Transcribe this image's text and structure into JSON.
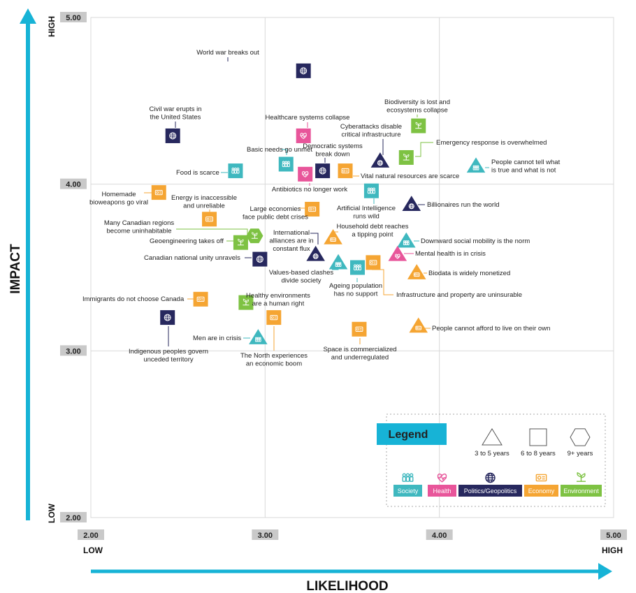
{
  "chart_data": {
    "type": "scatter",
    "xlabel": "LIKELIHOOD",
    "ylabel": "IMPACT",
    "xlim": [
      2.0,
      5.0
    ],
    "ylim": [
      2.0,
      5.0
    ],
    "x_ticks": [
      "2.00",
      "3.00",
      "4.00",
      "5.00"
    ],
    "y_ticks": [
      "2.00",
      "3.00",
      "4.00",
      "5.00"
    ],
    "x_end_labels": {
      "low": "LOW",
      "high": "HIGH"
    },
    "y_end_labels": {
      "low": "LOW",
      "high": "HIGH"
    },
    "grid": true,
    "categories": {
      "society": {
        "label": "Society",
        "color": "#3fb8bf"
      },
      "health": {
        "label": "Health",
        "color": "#e8559a"
      },
      "politics": {
        "label": "Politics/Geopolitics",
        "color": "#27285e"
      },
      "economy": {
        "label": "Economy",
        "color": "#f5a533"
      },
      "environment": {
        "label": "Environment",
        "color": "#7ec243"
      }
    },
    "points": [
      {
        "label": "World war breaks out",
        "x": 3.22,
        "y": 4.68,
        "category": "politics",
        "shape": "square"
      },
      {
        "label": "Civil war erupts in the United States",
        "x": 2.47,
        "y": 4.29,
        "category": "politics",
        "shape": "square"
      },
      {
        "label": "Healthcare systems collapse",
        "x": 3.22,
        "y": 4.29,
        "category": "health",
        "shape": "square"
      },
      {
        "label": "Biodiversity is lost and ecosystems collapse",
        "x": 3.88,
        "y": 4.35,
        "category": "environment",
        "shape": "square"
      },
      {
        "label": "Cyberattacks disable critical infrastructure",
        "x": 3.66,
        "y": 4.14,
        "category": "politics",
        "shape": "triangle"
      },
      {
        "label": "Emergency response is overwhelmed",
        "x": 3.81,
        "y": 4.16,
        "category": "environment",
        "shape": "square"
      },
      {
        "label": "People cannot tell what is true and what is not",
        "x": 4.21,
        "y": 4.11,
        "category": "society",
        "shape": "triangle"
      },
      {
        "label": "Basic needs go unmet",
        "x": 3.12,
        "y": 4.12,
        "category": "society",
        "shape": "square"
      },
      {
        "label": "Democratic systems break down",
        "x": 3.33,
        "y": 4.08,
        "category": "politics",
        "shape": "square"
      },
      {
        "label": "Food is scarce",
        "x": 2.83,
        "y": 4.08,
        "category": "society",
        "shape": "square"
      },
      {
        "label": "Vital natural resources are scarce",
        "x": 3.46,
        "y": 4.08,
        "category": "economy",
        "shape": "square"
      },
      {
        "label": "Antibiotics no longer work",
        "x": 3.23,
        "y": 4.06,
        "category": "health",
        "shape": "square"
      },
      {
        "label": "Homemade bioweapons go viral",
        "x": 2.39,
        "y": 3.95,
        "category": "economy",
        "shape": "square"
      },
      {
        "label": "Artificial Intelligence runs wild",
        "x": 3.61,
        "y": 3.96,
        "category": "society",
        "shape": "square"
      },
      {
        "label": "Billionaires run the world",
        "x": 3.84,
        "y": 3.88,
        "category": "politics",
        "shape": "triangle"
      },
      {
        "label": "Large economies face public debt crises",
        "x": 3.27,
        "y": 3.85,
        "category": "economy",
        "shape": "square"
      },
      {
        "label": "Energy is inaccessible and unreliable",
        "x": 2.68,
        "y": 3.79,
        "category": "economy",
        "shape": "square"
      },
      {
        "label": "Many Canadian regions become uninhabitable",
        "x": 2.94,
        "y": 3.69,
        "category": "environment",
        "shape": "hexagon"
      },
      {
        "label": "Geoengineering takes off",
        "x": 2.86,
        "y": 3.65,
        "category": "environment",
        "shape": "square"
      },
      {
        "label": "Household debt reaches a tipping point",
        "x": 3.39,
        "y": 3.68,
        "category": "economy",
        "shape": "triangle"
      },
      {
        "label": "Downward social mobility is the norm",
        "x": 3.81,
        "y": 3.66,
        "category": "society",
        "shape": "triangle"
      },
      {
        "label": "International alliances are in constant flux",
        "x": 3.29,
        "y": 3.58,
        "category": "politics",
        "shape": "triangle"
      },
      {
        "label": "Mental health is in crisis",
        "x": 3.76,
        "y": 3.58,
        "category": "health",
        "shape": "triangle"
      },
      {
        "label": "Canadian national unity unravels",
        "x": 2.97,
        "y": 3.55,
        "category": "politics",
        "shape": "square"
      },
      {
        "label": "Values-based clashes divide society",
        "x": 3.42,
        "y": 3.53,
        "category": "society",
        "shape": "triangle"
      },
      {
        "label": "Ageing population has no support",
        "x": 3.53,
        "y": 3.5,
        "category": "society",
        "shape": "square"
      },
      {
        "label": "Infrastructure and property are uninsurable",
        "x": 3.62,
        "y": 3.53,
        "category": "economy",
        "shape": "square"
      },
      {
        "label": "Biodata is widely monetized",
        "x": 3.87,
        "y": 3.47,
        "category": "economy",
        "shape": "triangle"
      },
      {
        "label": "Immigrants do not choose Canada",
        "x": 2.63,
        "y": 3.31,
        "category": "economy",
        "shape": "square"
      },
      {
        "label": "Healthy environments are a human right",
        "x": 2.89,
        "y": 3.29,
        "category": "environment",
        "shape": "square"
      },
      {
        "label": "Indigenous peoples govern unceded territory",
        "x": 2.44,
        "y": 3.2,
        "category": "politics",
        "shape": "square"
      },
      {
        "label": "The North experiences an economic boom",
        "x": 3.05,
        "y": 3.2,
        "category": "economy",
        "shape": "square"
      },
      {
        "label": "Space is commercialized and underregulated",
        "x": 3.54,
        "y": 3.13,
        "category": "economy",
        "shape": "square"
      },
      {
        "label": "People cannot afford to live on their own",
        "x": 3.88,
        "y": 3.15,
        "category": "economy",
        "shape": "triangle"
      },
      {
        "label": "Men are in crisis",
        "x": 2.96,
        "y": 3.08,
        "category": "society",
        "shape": "triangle"
      }
    ]
  },
  "legend": {
    "title": "Legend",
    "shapes": [
      {
        "shape": "triangle",
        "label": "3 to 5 years"
      },
      {
        "shape": "square",
        "label": "6 to 8 years"
      },
      {
        "shape": "hexagon",
        "label": "9+ years"
      }
    ],
    "category_order": [
      "society",
      "health",
      "politics",
      "economy",
      "environment"
    ]
  },
  "colors": {
    "arrow": "#17b3d6",
    "legend_title_bg": "#17b3d6",
    "grid": "#d9d9d9"
  }
}
